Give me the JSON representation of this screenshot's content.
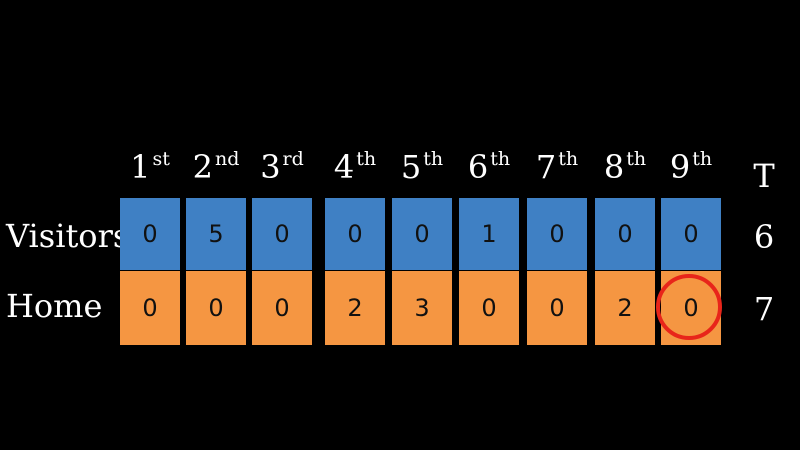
{
  "headers": [
    {
      "num": "1",
      "suffix": "st"
    },
    {
      "num": "2",
      "suffix": "nd"
    },
    {
      "num": "3",
      "suffix": "rd"
    },
    {
      "num": "4",
      "suffix": "th"
    },
    {
      "num": "5",
      "suffix": "th"
    },
    {
      "num": "6",
      "suffix": "th"
    },
    {
      "num": "7",
      "suffix": "th"
    },
    {
      "num": "8",
      "suffix": "th"
    },
    {
      "num": "9",
      "suffix": "th"
    }
  ],
  "total_header": "T",
  "rows": [
    {
      "label": "Visitors",
      "scores": [
        "0",
        "5",
        "0",
        "0",
        "0",
        "1",
        "0",
        "0",
        "0"
      ],
      "total": "6",
      "color": "#3f80c4"
    },
    {
      "label": "Home",
      "scores": [
        "0",
        "0",
        "0",
        "2",
        "3",
        "0",
        "0",
        "2",
        "0"
      ],
      "total": "7",
      "color": "#f59642"
    }
  ],
  "highlight": {
    "row": "Home",
    "inning": "9th",
    "color": "#e8251a"
  }
}
